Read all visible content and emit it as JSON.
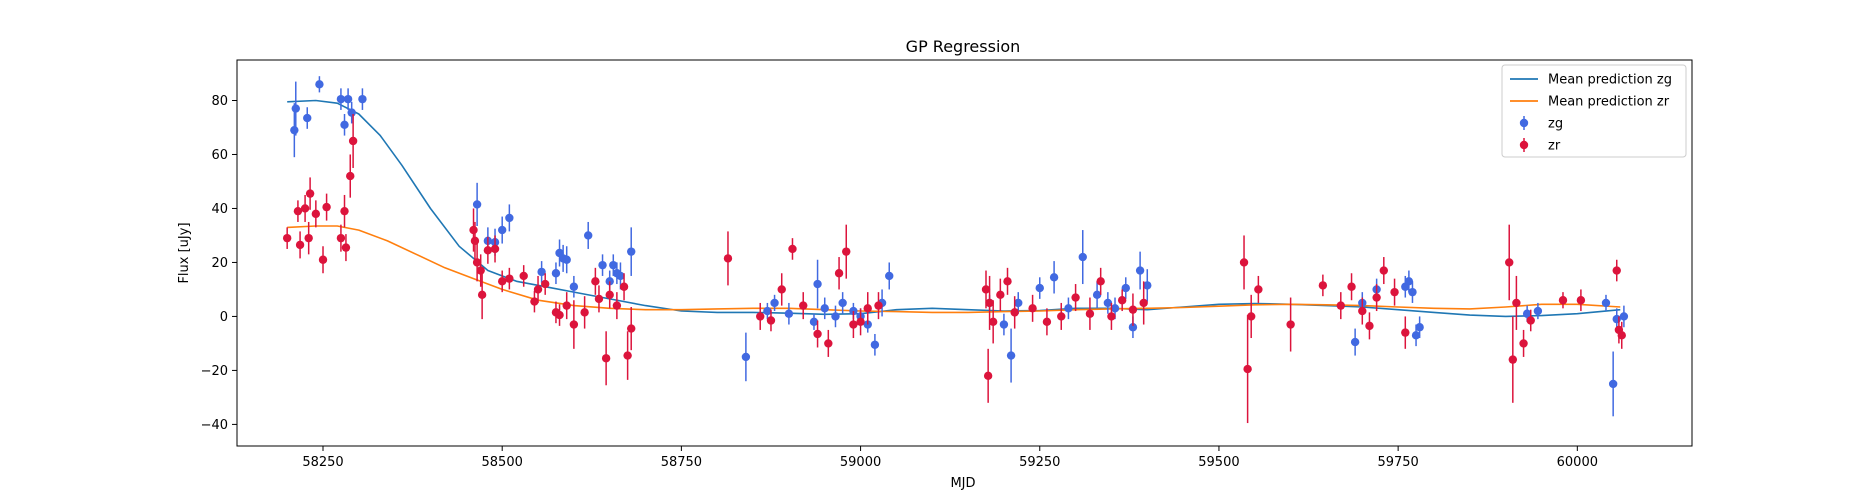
{
  "chart_data": {
    "type": "scatter",
    "title": "GP Regression",
    "xlabel": "MJD",
    "ylabel": "Flux [uJy]",
    "xlim": [
      58130,
      60160
    ],
    "ylim": [
      -48,
      95
    ],
    "xticks": [
      58250,
      58500,
      58750,
      59000,
      59250,
      59500,
      59750,
      60000
    ],
    "yticks": [
      -40,
      -20,
      0,
      20,
      40,
      60,
      80
    ],
    "legend_position": "upper right",
    "grid": false,
    "series": [
      {
        "name": "Mean prediction zg",
        "kind": "line",
        "color": "#1f77b4",
        "x": [
          58200,
          58240,
          58270,
          58300,
          58330,
          58360,
          58400,
          58440,
          58480,
          58520,
          58560,
          58600,
          58650,
          58700,
          58750,
          58800,
          58850,
          58900,
          58950,
          59000,
          59050,
          59100,
          59150,
          59200,
          59250,
          59300,
          59350,
          59400,
          59450,
          59500,
          59550,
          59600,
          59650,
          59700,
          59750,
          59800,
          59850,
          59900,
          59950,
          60000,
          60060
        ],
        "y": [
          79.5,
          80,
          79,
          75,
          67,
          56,
          40,
          26,
          17,
          13,
          11,
          9,
          6.5,
          4,
          2,
          1.5,
          1.5,
          1.2,
          0.8,
          1,
          2.5,
          3,
          2.5,
          2,
          2.2,
          3,
          3,
          2.5,
          3.5,
          4.5,
          4.8,
          4.5,
          4,
          3.5,
          2.5,
          1.5,
          0.5,
          0,
          0.3,
          1,
          2.5
        ]
      },
      {
        "name": "Mean prediction zr",
        "kind": "line",
        "color": "#ff7f0e",
        "x": [
          58200,
          58240,
          58270,
          58300,
          58340,
          58380,
          58420,
          58460,
          58500,
          58550,
          58600,
          58650,
          58700,
          58750,
          58800,
          58850,
          58900,
          58950,
          59000,
          59050,
          59100,
          59150,
          59200,
          59250,
          59300,
          59350,
          59400,
          59450,
          59500,
          59550,
          59600,
          59650,
          59700,
          59750,
          59800,
          59850,
          59900,
          59950,
          60000,
          60060
        ],
        "y": [
          33,
          33.5,
          33.5,
          32,
          28,
          23,
          18,
          14,
          10,
          6,
          4,
          3,
          2.5,
          2.5,
          2.8,
          3,
          3,
          2.5,
          2,
          1.8,
          1.5,
          1.5,
          1.8,
          2,
          2.5,
          2.8,
          3,
          3.3,
          3.8,
          4.3,
          4.5,
          4.3,
          4,
          3.5,
          3,
          2.8,
          3.5,
          4.5,
          4.5,
          3.5
        ]
      },
      {
        "name": "zg",
        "kind": "errorbar",
        "color": "#4169e1",
        "points": [
          [
            58210,
            69,
            10
          ],
          [
            58212,
            77,
            10
          ],
          [
            58228,
            73.5,
            4
          ],
          [
            58245,
            86,
            3
          ],
          [
            58275,
            80.5,
            4
          ],
          [
            58280,
            71,
            4
          ],
          [
            58285,
            80.5,
            4
          ],
          [
            58290,
            75.5,
            4
          ],
          [
            58305,
            80.5,
            4
          ],
          [
            58465,
            41.5,
            8
          ],
          [
            58480,
            28,
            5
          ],
          [
            58490,
            27.5,
            5
          ],
          [
            58500,
            32,
            5
          ],
          [
            58510,
            36.5,
            5
          ],
          [
            58555,
            16.5,
            4
          ],
          [
            58575,
            16,
            4
          ],
          [
            58580,
            23.5,
            5
          ],
          [
            58585,
            21.5,
            5
          ],
          [
            58590,
            21,
            5
          ],
          [
            58600,
            11,
            4
          ],
          [
            58620,
            30,
            5
          ],
          [
            58640,
            19,
            4
          ],
          [
            58650,
            13,
            4
          ],
          [
            58655,
            19,
            4
          ],
          [
            58660,
            16,
            4
          ],
          [
            58665,
            15,
            5
          ],
          [
            58680,
            24,
            9
          ],
          [
            58840,
            -15,
            9
          ],
          [
            58870,
            2,
            3
          ],
          [
            58880,
            5,
            3
          ],
          [
            58900,
            1,
            4
          ],
          [
            58935,
            -2,
            3
          ],
          [
            58940,
            12,
            9
          ],
          [
            58950,
            3,
            4
          ],
          [
            58965,
            0,
            4
          ],
          [
            58975,
            5,
            4
          ],
          [
            58990,
            2,
            3
          ],
          [
            59000,
            0,
            3
          ],
          [
            59010,
            -3,
            3
          ],
          [
            59020,
            -10.5,
            4
          ],
          [
            59030,
            5,
            5
          ],
          [
            59040,
            15,
            5
          ],
          [
            59180,
            5,
            3
          ],
          [
            59200,
            -3,
            4
          ],
          [
            59210,
            -14.5,
            10
          ],
          [
            59220,
            5,
            4
          ],
          [
            59250,
            10.5,
            4
          ],
          [
            59270,
            14.5,
            6
          ],
          [
            59290,
            3,
            4
          ],
          [
            59310,
            22,
            10
          ],
          [
            59330,
            8,
            5
          ],
          [
            59345,
            5,
            4
          ],
          [
            59355,
            3,
            4
          ],
          [
            59370,
            10.5,
            4
          ],
          [
            59380,
            -4,
            4
          ],
          [
            59390,
            17,
            7
          ],
          [
            59400,
            11.5,
            6
          ],
          [
            59690,
            -9.5,
            5
          ],
          [
            59700,
            5,
            4
          ],
          [
            59720,
            10,
            4
          ],
          [
            59760,
            11,
            4
          ],
          [
            59765,
            13,
            4
          ],
          [
            59770,
            9,
            4
          ],
          [
            59775,
            -7,
            4
          ],
          [
            59780,
            -4,
            4
          ],
          [
            59930,
            1,
            3
          ],
          [
            59945,
            2,
            3
          ],
          [
            60040,
            5,
            3
          ],
          [
            60050,
            -25,
            12
          ],
          [
            60055,
            -1,
            4
          ],
          [
            60065,
            0,
            4
          ]
        ]
      },
      {
        "name": "zr",
        "kind": "errorbar",
        "color": "#dc143c",
        "points": [
          [
            58200,
            29,
            4
          ],
          [
            58215,
            39,
            4
          ],
          [
            58218,
            26.5,
            5
          ],
          [
            58225,
            40,
            5
          ],
          [
            58230,
            29,
            6
          ],
          [
            58232,
            45.5,
            6
          ],
          [
            58240,
            38,
            5
          ],
          [
            58250,
            21,
            5
          ],
          [
            58255,
            40.5,
            5
          ],
          [
            58275,
            29,
            5
          ],
          [
            58280,
            39,
            6
          ],
          [
            58282,
            25.5,
            5
          ],
          [
            58288,
            52,
            8
          ],
          [
            58292,
            65,
            10
          ],
          [
            58460,
            32,
            8
          ],
          [
            58462,
            28,
            7
          ],
          [
            58465,
            20,
            7
          ],
          [
            58470,
            17,
            6
          ],
          [
            58472,
            8,
            9
          ],
          [
            58480,
            24.5,
            5
          ],
          [
            58490,
            25,
            5
          ],
          [
            58500,
            13,
            4
          ],
          [
            58510,
            14,
            4
          ],
          [
            58530,
            15,
            4
          ],
          [
            58545,
            5.5,
            4
          ],
          [
            58550,
            10,
            5
          ],
          [
            58560,
            12,
            4
          ],
          [
            58575,
            1.5,
            4
          ],
          [
            58580,
            0.5,
            4
          ],
          [
            58590,
            4,
            5
          ],
          [
            58600,
            -3,
            9
          ],
          [
            58615,
            1.5,
            6
          ],
          [
            58630,
            13,
            5
          ],
          [
            58635,
            6.5,
            5
          ],
          [
            58645,
            -15.5,
            10
          ],
          [
            58650,
            8,
            5
          ],
          [
            58660,
            4,
            5
          ],
          [
            58670,
            11,
            5
          ],
          [
            58675,
            -14.5,
            9
          ],
          [
            58680,
            -4.5,
            8
          ],
          [
            58815,
            21.5,
            10
          ],
          [
            58860,
            0,
            5
          ],
          [
            58875,
            -1.5,
            4
          ],
          [
            58890,
            10,
            6
          ],
          [
            58905,
            25,
            4
          ],
          [
            58920,
            4,
            5
          ],
          [
            58940,
            -6.5,
            5
          ],
          [
            58955,
            -10,
            5
          ],
          [
            58970,
            16,
            6
          ],
          [
            58980,
            24,
            10
          ],
          [
            58990,
            -3,
            5
          ],
          [
            59000,
            -2,
            5
          ],
          [
            59010,
            3,
            6
          ],
          [
            59025,
            4,
            5
          ],
          [
            59175,
            10,
            7
          ],
          [
            59178,
            -22,
            10
          ],
          [
            59180,
            5,
            10
          ],
          [
            59185,
            -2,
            8
          ],
          [
            59195,
            8,
            6
          ],
          [
            59205,
            13,
            5
          ],
          [
            59215,
            1.5,
            6
          ],
          [
            59240,
            3,
            5
          ],
          [
            59260,
            -2,
            5
          ],
          [
            59280,
            0,
            5
          ],
          [
            59300,
            7,
            5
          ],
          [
            59320,
            1,
            6
          ],
          [
            59335,
            13,
            5
          ],
          [
            59350,
            0,
            5
          ],
          [
            59365,
            6,
            4
          ],
          [
            59380,
            2.5,
            6
          ],
          [
            59395,
            5,
            8
          ],
          [
            59535,
            20,
            10
          ],
          [
            59540,
            -19.5,
            20
          ],
          [
            59545,
            0,
            8
          ],
          [
            59555,
            10,
            5
          ],
          [
            59600,
            -3,
            10
          ],
          [
            59645,
            11.5,
            4
          ],
          [
            59670,
            4,
            5
          ],
          [
            59685,
            11,
            5
          ],
          [
            59700,
            2,
            5
          ],
          [
            59710,
            -3.5,
            5
          ],
          [
            59720,
            7,
            5
          ],
          [
            59730,
            17,
            5
          ],
          [
            59745,
            9,
            5
          ],
          [
            59760,
            -6,
            6
          ],
          [
            59905,
            20,
            14
          ],
          [
            59910,
            -16,
            16
          ],
          [
            59915,
            5,
            10
          ],
          [
            59925,
            -10,
            5
          ],
          [
            59935,
            -1.5,
            4
          ],
          [
            59980,
            6,
            3
          ],
          [
            60005,
            6,
            4
          ],
          [
            60055,
            17,
            4
          ],
          [
            60058,
            -5,
            5
          ],
          [
            60062,
            -7,
            5
          ]
        ]
      }
    ]
  }
}
